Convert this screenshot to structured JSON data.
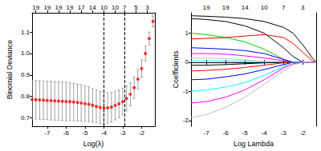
{
  "chart_data": [
    {
      "type": "scatter",
      "x_label": "Log(λ)",
      "y_label": "Binomial Deviance",
      "x": [
        -7.8,
        -7.6,
        -7.4,
        -7.2,
        -7.0,
        -6.8,
        -6.6,
        -6.4,
        -6.2,
        -6.0,
        -5.8,
        -5.6,
        -5.4,
        -5.2,
        -5.0,
        -4.8,
        -4.6,
        -4.4,
        -4.2,
        -4.0,
        -3.8,
        -3.6,
        -3.4,
        -3.2,
        -3.0,
        -2.8,
        -2.6,
        -2.4,
        -2.2,
        -2.0,
        -1.8,
        -1.6,
        -1.4
      ],
      "values": [
        0.785,
        0.784,
        0.783,
        0.782,
        0.781,
        0.78,
        0.779,
        0.778,
        0.777,
        0.776,
        0.775,
        0.773,
        0.771,
        0.769,
        0.766,
        0.763,
        0.758,
        0.753,
        0.748,
        0.745,
        0.746,
        0.75,
        0.757,
        0.765,
        0.775,
        0.79,
        0.81,
        0.84,
        0.88,
        0.93,
        1.0,
        1.07,
        1.15
      ],
      "errors": [
        0.09,
        0.09,
        0.09,
        0.09,
        0.09,
        0.09,
        0.09,
        0.09,
        0.09,
        0.09,
        0.088,
        0.087,
        0.086,
        0.085,
        0.083,
        0.081,
        0.079,
        0.077,
        0.075,
        0.073,
        0.071,
        0.069,
        0.067,
        0.065,
        0.062,
        0.058,
        0.054,
        0.05,
        0.045,
        0.04,
        0.035,
        0.03,
        0.025
      ],
      "color": "#ff0000",
      "marker": "circle",
      "vlines": [
        -4.0,
        -2.9
      ],
      "xlim": [
        -7.8,
        -1.3
      ],
      "xticks": [
        -7,
        -6,
        -5,
        -4,
        -3,
        -2
      ],
      "ylim": [
        0.66,
        1.19
      ],
      "yticks": [
        0.7,
        0.8,
        0.9,
        {
          "value": 1,
          "label": "1.0"
        },
        1.1
      ],
      "x2ticks": [
        {
          "value": -7.6,
          "label": "19"
        },
        {
          "value": -7.0,
          "label": "19"
        },
        {
          "value": -6.4,
          "label": "19"
        },
        {
          "value": -5.8,
          "label": "19"
        },
        {
          "value": -5.2,
          "label": "17"
        },
        {
          "value": -4.6,
          "label": "14"
        },
        {
          "value": -4.0,
          "label": "10"
        },
        {
          "value": -3.4,
          "label": "10"
        },
        {
          "value": -2.9,
          "label": "7"
        },
        {
          "value": -2.3,
          "label": "5"
        },
        {
          "value": -1.7,
          "label": "3"
        }
      ],
      "grid": false
    },
    {
      "type": "line",
      "x_label": "Log Lambda",
      "y_label": "Coefficients",
      "x": [
        -7.8,
        -7,
        -6,
        -5,
        -4,
        -3,
        -2.5,
        -2,
        -1.5,
        -1.3
      ],
      "series": [
        {
          "color": "#000000",
          "values": [
            1.6,
            1.58,
            1.55,
            1.5,
            1.4,
            1.2,
            1.0,
            0.6,
            0.15,
            0
          ]
        },
        {
          "color": "#000000",
          "values": [
            1.5,
            1.47,
            1.4,
            1.25,
            1.0,
            0.5,
            0.2,
            0,
            0,
            0
          ]
        },
        {
          "color": "#00cd00",
          "values": [
            1.0,
            0.95,
            0.85,
            0.7,
            0.45,
            0.1,
            0,
            0,
            0,
            0
          ]
        },
        {
          "color": "#ff0000",
          "values": [
            0.8,
            0.82,
            0.85,
            0.9,
            0.95,
            0.85,
            0.65,
            0.35,
            0.05,
            0
          ]
        },
        {
          "color": "#0000ff",
          "values": [
            0.5,
            0.48,
            0.45,
            0.4,
            0.3,
            0.1,
            0,
            0,
            0,
            0
          ]
        },
        {
          "color": "#ff00ff",
          "values": [
            0.3,
            0.3,
            0.28,
            0.22,
            0.15,
            0.05,
            0,
            0,
            0,
            0
          ]
        },
        {
          "color": "#bebebe",
          "values": [
            0.15,
            0.14,
            0.12,
            0.08,
            0.03,
            0,
            0,
            0,
            0,
            0
          ]
        },
        {
          "color": "#00ffff",
          "values": [
            0.05,
            0.05,
            0.04,
            0.03,
            0.01,
            0,
            0,
            0,
            0,
            0
          ]
        },
        {
          "color": "#000000",
          "values": [
            -0.1,
            -0.1,
            -0.08,
            -0.05,
            -0.02,
            0,
            0,
            0,
            0,
            0
          ]
        },
        {
          "color": "#ff0000",
          "values": [
            -0.3,
            -0.28,
            -0.24,
            -0.18,
            -0.1,
            -0.02,
            0,
            0,
            0,
            0
          ]
        },
        {
          "color": "#0000ff",
          "values": [
            -0.6,
            -0.58,
            -0.5,
            -0.4,
            -0.25,
            -0.08,
            0,
            0,
            0,
            0
          ]
        },
        {
          "color": "#00ffff",
          "values": [
            -1.0,
            -0.95,
            -0.85,
            -0.7,
            -0.45,
            -0.15,
            0,
            0,
            0,
            0
          ]
        },
        {
          "color": "#ff00ff",
          "values": [
            -1.4,
            -1.35,
            -1.2,
            -0.95,
            -0.6,
            -0.2,
            -0.05,
            0,
            0,
            0
          ]
        },
        {
          "color": "#bebebe",
          "values": [
            -1.9,
            -1.8,
            -1.55,
            -1.2,
            -0.75,
            -0.3,
            -0.1,
            0,
            0,
            0
          ]
        }
      ],
      "line_style": "solid",
      "xlim": [
        -7.8,
        -1.3
      ],
      "xticks": [
        -7,
        -6,
        -5,
        -4,
        -3,
        -2
      ],
      "ylim": [
        -2.2,
        1.7
      ],
      "yticks": [
        -2,
        -1,
        0,
        1
      ],
      "x2ticks": [
        {
          "value": -7,
          "label": "19"
        },
        {
          "value": -6,
          "label": "19"
        },
        {
          "value": -5,
          "label": "14"
        },
        {
          "value": -4,
          "label": "10"
        },
        {
          "value": -3,
          "label": "7"
        },
        {
          "value": -2,
          "label": "3"
        }
      ],
      "grid": false
    }
  ]
}
